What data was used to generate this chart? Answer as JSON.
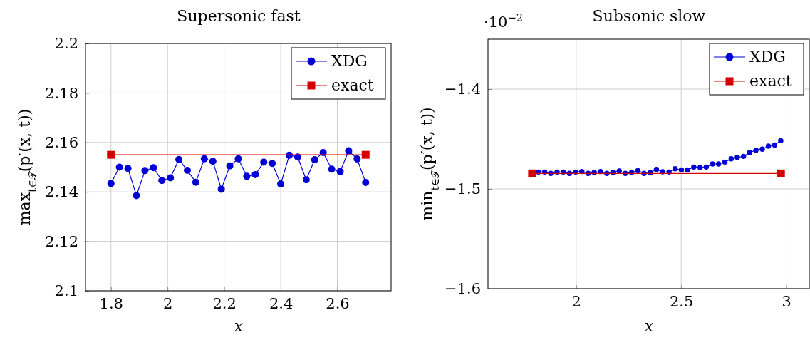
{
  "chart_data": [
    {
      "type": "line",
      "title": "Supersonic fast",
      "xlabel": "x",
      "ylabel": "max$_{t∈𝒯}$(p′(x, t))",
      "xlim": [
        1.71,
        2.79
      ],
      "ylim": [
        2.1,
        2.2
      ],
      "xticks": [
        1.8,
        2,
        2.2,
        2.4,
        2.6
      ],
      "yticks": [
        2.1,
        2.12,
        2.14,
        2.16,
        2.18,
        2.2
      ],
      "grid": true,
      "legend": "top right",
      "series": [
        {
          "name": "XDG",
          "color": "#0000d6",
          "marker": "circle",
          "x": [
            1.8,
            1.83,
            1.86,
            1.89,
            1.92,
            1.95,
            1.98,
            2.01,
            2.04,
            2.07,
            2.1,
            2.13,
            2.16,
            2.19,
            2.22,
            2.25,
            2.28,
            2.31,
            2.34,
            2.37,
            2.4,
            2.43,
            2.46,
            2.49,
            2.52,
            2.55,
            2.58,
            2.61,
            2.64,
            2.67,
            2.7
          ],
          "values": [
            2.1434,
            2.15,
            2.1495,
            2.1385,
            2.1486,
            2.1498,
            2.1446,
            2.1457,
            2.1531,
            2.1487,
            2.1439,
            2.1534,
            2.1524,
            2.1411,
            2.1505,
            2.1534,
            2.1463,
            2.147,
            2.152,
            2.1515,
            2.1432,
            2.1548,
            2.1541,
            2.1449,
            2.153,
            2.1559,
            2.1492,
            2.1482,
            2.1566,
            2.1533,
            2.1438
          ]
        },
        {
          "name": "exact",
          "color": "#d40000",
          "marker": "square",
          "x": [
            1.8,
            2.7
          ],
          "values": [
            2.155,
            2.155
          ]
        }
      ]
    },
    {
      "type": "line",
      "title": "Subsonic slow",
      "xlabel": "x",
      "ylabel": "min$_{t∈𝒯}$(p′(x, t))",
      "annotations": [
        "·10$^{−2}$"
      ],
      "xlim": [
        1.58,
        3.11
      ],
      "ylim": [
        -1.6,
        -1.35
      ],
      "xticks": [
        2,
        2.5,
        3
      ],
      "yticks": [
        {
          "value": -1.6,
          "label": "−1.6"
        },
        {
          "value": -1.5,
          "label": "−1.5"
        },
        {
          "value": -1.4,
          "label": "−1.4"
        }
      ],
      "grid": true,
      "legend": "top right",
      "series": [
        {
          "name": "XDG",
          "color": "#0000d6",
          "marker": "circle",
          "x": [
            1.82,
            1.85,
            1.879,
            1.909,
            1.938,
            1.968,
            1.998,
            2.027,
            2.057,
            2.086,
            2.116,
            2.146,
            2.175,
            2.205,
            2.234,
            2.264,
            2.294,
            2.323,
            2.353,
            2.382,
            2.412,
            2.442,
            2.471,
            2.501,
            2.53,
            2.56,
            2.59,
            2.619,
            2.649,
            2.678,
            2.708,
            2.738,
            2.767,
            2.797,
            2.826,
            2.856,
            2.886,
            2.915,
            2.945,
            2.974
          ],
          "values": [
            -1.4831,
            -1.4831,
            -1.4845,
            -1.4831,
            -1.4831,
            -1.4845,
            -1.4831,
            -1.4826,
            -1.4845,
            -1.4836,
            -1.4826,
            -1.4845,
            -1.4836,
            -1.4821,
            -1.4845,
            -1.4836,
            -1.4817,
            -1.4845,
            -1.4838,
            -1.4805,
            -1.4829,
            -1.4831,
            -1.4798,
            -1.481,
            -1.481,
            -1.4781,
            -1.4786,
            -1.4781,
            -1.475,
            -1.475,
            -1.4731,
            -1.4698,
            -1.4684,
            -1.4674,
            -1.4636,
            -1.4612,
            -1.4602,
            -1.4571,
            -1.456,
            -1.4517
          ]
        },
        {
          "name": "exact",
          "color": "#d40000",
          "marker": "square",
          "x": [
            1.79,
            2.975
          ],
          "values": [
            -1.4845,
            -1.4845
          ]
        }
      ]
    }
  ]
}
